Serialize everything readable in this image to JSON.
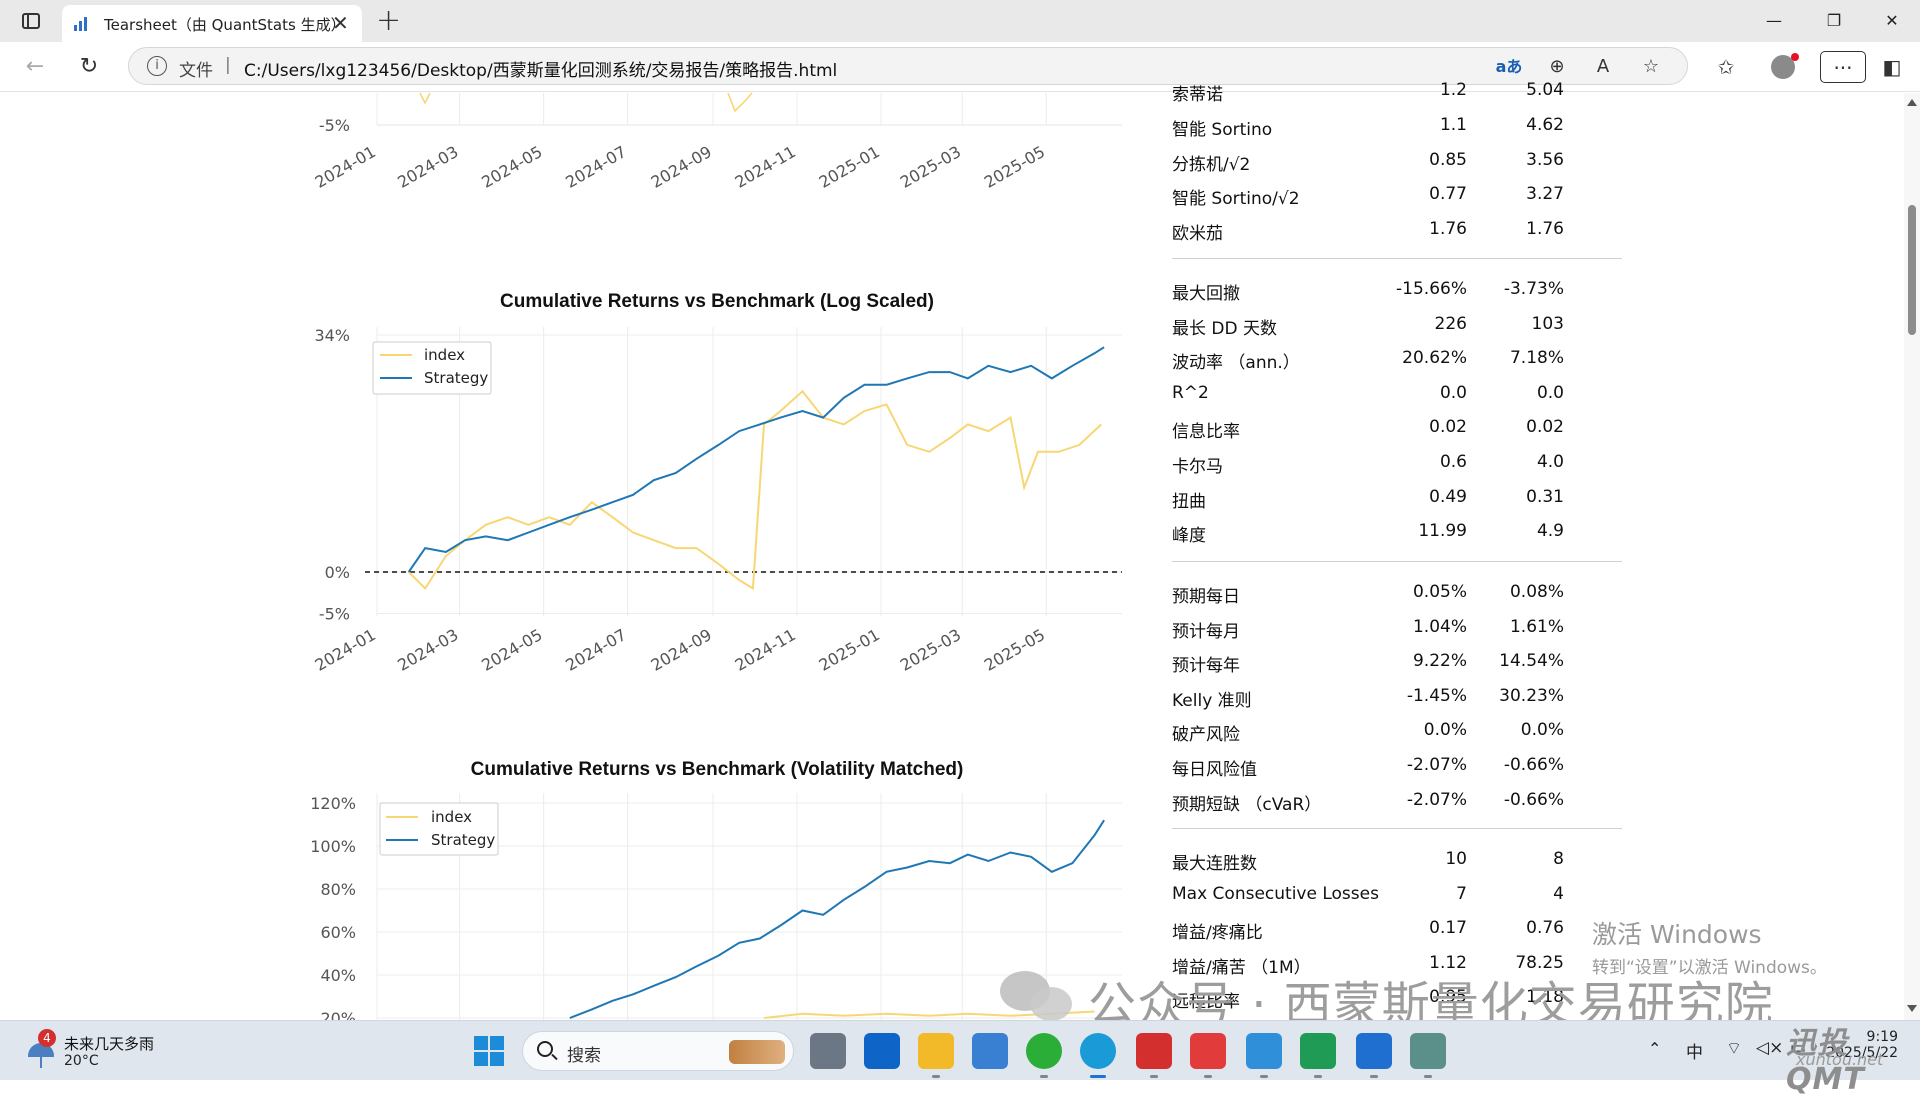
{
  "browser": {
    "tab_title": "Tearsheet（由 QuantStats 生成）",
    "address_scheme": "文件",
    "address_url": "C:/Users/lxg123456/Desktop/西蒙斯量化回测系统/交易报告/策略报告.html"
  },
  "charts": [
    {
      "title": "Cumulative Returns vs Benchmark (Log Scaled)",
      "yticks": [
        "34%",
        "0%",
        "-5%"
      ],
      "xticks": [
        "2024-01",
        "2024-03",
        "2024-05",
        "2024-07",
        "2024-09",
        "2024-11",
        "2025-01",
        "2025-03",
        "2025-05"
      ],
      "legend": [
        "index",
        "Strategy"
      ]
    },
    {
      "title": "Cumulative Returns vs Benchmark (Volatility Matched)",
      "yticks": [
        "120%",
        "100%",
        "80%",
        "60%",
        "40%",
        "20%"
      ],
      "legend": [
        "index",
        "Strategy"
      ]
    }
  ],
  "partial_chart_above": {
    "yticks": [
      "-5%"
    ],
    "xticks": [
      "2024-01",
      "2024-03",
      "2024-05",
      "2024-07",
      "2024-09",
      "2024-11",
      "2025-01",
      "2025-03",
      "2025-05"
    ]
  },
  "chart_data": [
    {
      "type": "line",
      "title": "Cumulative Returns vs Benchmark (Log Scaled)",
      "xlabel": "",
      "ylabel": "",
      "x_range": [
        "2024-01",
        "2025-06"
      ],
      "ylim": [
        -0.05,
        0.34
      ],
      "log_scale": true,
      "grid": true,
      "legend_position": "top-left",
      "series": [
        {
          "name": "index",
          "color": "#f7d774",
          "x": [
            "2024-01-24",
            "2024-02-05",
            "2024-02-20",
            "2024-03-05",
            "2024-03-20",
            "2024-04-05",
            "2024-04-20",
            "2024-05-05",
            "2024-05-20",
            "2024-06-05",
            "2024-06-20",
            "2024-07-05",
            "2024-07-20",
            "2024-08-05",
            "2024-08-20",
            "2024-09-05",
            "2024-09-20",
            "2024-09-30",
            "2024-10-08",
            "2024-10-20",
            "2024-11-05",
            "2024-11-20",
            "2024-12-05",
            "2024-12-20",
            "2025-01-05",
            "2025-01-20",
            "2025-02-05",
            "2025-02-20",
            "2025-03-05",
            "2025-03-20",
            "2025-04-05",
            "2025-04-15",
            "2025-04-25",
            "2025-05-10",
            "2025-05-25",
            "2025-06-10"
          ],
          "y": [
            0.0,
            -0.02,
            0.02,
            0.04,
            0.06,
            0.07,
            0.06,
            0.07,
            0.06,
            0.09,
            0.07,
            0.05,
            0.04,
            0.03,
            0.03,
            0.01,
            -0.01,
            -0.02,
            0.2,
            0.22,
            0.25,
            0.21,
            0.2,
            0.22,
            0.23,
            0.17,
            0.16,
            0.18,
            0.2,
            0.19,
            0.21,
            0.11,
            0.16,
            0.16,
            0.17,
            0.2
          ]
        },
        {
          "name": "Strategy",
          "color": "#1f77b4",
          "x": [
            "2024-01-24",
            "2024-02-05",
            "2024-02-20",
            "2024-03-05",
            "2024-03-20",
            "2024-04-05",
            "2024-04-20",
            "2024-05-05",
            "2024-05-20",
            "2024-06-05",
            "2024-06-20",
            "2024-07-05",
            "2024-07-20",
            "2024-08-05",
            "2024-08-20",
            "2024-09-05",
            "2024-09-20",
            "2024-10-05",
            "2024-10-20",
            "2024-11-05",
            "2024-11-20",
            "2024-12-05",
            "2024-12-20",
            "2025-01-05",
            "2025-01-20",
            "2025-02-05",
            "2025-02-20",
            "2025-03-05",
            "2025-03-20",
            "2025-04-05",
            "2025-04-20",
            "2025-05-05",
            "2025-05-20",
            "2025-06-05",
            "2025-06-12"
          ],
          "y": [
            0.0,
            0.03,
            0.025,
            0.04,
            0.045,
            0.04,
            0.05,
            0.06,
            0.07,
            0.08,
            0.09,
            0.1,
            0.12,
            0.13,
            0.15,
            0.17,
            0.19,
            0.2,
            0.21,
            0.22,
            0.21,
            0.24,
            0.26,
            0.26,
            0.27,
            0.28,
            0.28,
            0.27,
            0.29,
            0.28,
            0.29,
            0.27,
            0.29,
            0.31,
            0.32
          ]
        }
      ]
    },
    {
      "type": "line",
      "title": "Cumulative Returns vs Benchmark (Volatility Matched)",
      "xlabel": "",
      "ylabel": "",
      "x_range": [
        "2024-01",
        "2025-06"
      ],
      "ylim": [
        0.15,
        1.25
      ],
      "grid": true,
      "legend_position": "top-left",
      "series": [
        {
          "name": "index",
          "color": "#f7d774",
          "x": [
            "2024-10-08",
            "2024-11-05",
            "2024-12-05",
            "2025-01-05",
            "2025-02-05",
            "2025-03-05",
            "2025-04-05",
            "2025-05-05",
            "2025-06-05"
          ],
          "y": [
            0.2,
            0.22,
            0.21,
            0.22,
            0.21,
            0.22,
            0.21,
            0.22,
            0.23
          ]
        },
        {
          "name": "Strategy",
          "color": "#1f77b4",
          "x": [
            "2024-05-20",
            "2024-06-05",
            "2024-06-20",
            "2024-07-05",
            "2024-07-20",
            "2024-08-05",
            "2024-08-20",
            "2024-09-05",
            "2024-09-20",
            "2024-10-05",
            "2024-10-20",
            "2024-11-05",
            "2024-11-20",
            "2024-12-05",
            "2024-12-20",
            "2025-01-05",
            "2025-01-20",
            "2025-02-05",
            "2025-02-20",
            "2025-03-05",
            "2025-03-20",
            "2025-04-05",
            "2025-04-20",
            "2025-05-05",
            "2025-05-20",
            "2025-06-05",
            "2025-06-12"
          ],
          "y": [
            0.2,
            0.24,
            0.28,
            0.31,
            0.35,
            0.39,
            0.44,
            0.49,
            0.55,
            0.57,
            0.63,
            0.7,
            0.68,
            0.75,
            0.81,
            0.88,
            0.9,
            0.93,
            0.92,
            0.96,
            0.93,
            0.97,
            0.95,
            0.88,
            0.92,
            1.05,
            1.12
          ]
        }
      ]
    }
  ],
  "metrics": {
    "partial_top_row": {
      "label": "索蒂诺",
      "v1": "1.2",
      "v2": "5.04"
    },
    "groups": [
      [
        {
          "label": "智能 Sortino",
          "v1": "1.1",
          "v2": "4.62"
        },
        {
          "label": "分拣机/√2",
          "v1": "0.85",
          "v2": "3.56"
        },
        {
          "label": "智能 Sortino/√2",
          "v1": "0.77",
          "v2": "3.27"
        },
        {
          "label": "欧米茄",
          "v1": "1.76",
          "v2": "1.76"
        }
      ],
      [
        {
          "label": "最大回撤",
          "v1": "-15.66%",
          "v2": "-3.73%"
        },
        {
          "label": "最长 DD 天数",
          "v1": "226",
          "v2": "103"
        },
        {
          "label": "波动率 （ann.）",
          "v1": "20.62%",
          "v2": "7.18%"
        },
        {
          "label": "R^2",
          "v1": "0.0",
          "v2": "0.0"
        },
        {
          "label": "信息比率",
          "v1": "0.02",
          "v2": "0.02"
        },
        {
          "label": "卡尔马",
          "v1": "0.6",
          "v2": "4.0"
        },
        {
          "label": "扭曲",
          "v1": "0.49",
          "v2": "0.31"
        },
        {
          "label": "峰度",
          "v1": "11.99",
          "v2": "4.9"
        }
      ],
      [
        {
          "label": "预期每日",
          "v1": "0.05%",
          "v2": "0.08%"
        },
        {
          "label": "预计每月",
          "v1": "1.04%",
          "v2": "1.61%"
        },
        {
          "label": "预计每年",
          "v1": "9.22%",
          "v2": "14.54%"
        },
        {
          "label": "Kelly 准则",
          "v1": "-1.45%",
          "v2": "30.23%"
        },
        {
          "label": "破产风险",
          "v1": "0.0%",
          "v2": "0.0%"
        },
        {
          "label": "每日风险值",
          "v1": "-2.07%",
          "v2": "-0.66%"
        },
        {
          "label": "预期短缺 （cVaR）",
          "v1": "-2.07%",
          "v2": "-0.66%"
        }
      ],
      [
        {
          "label": "最大连胜数",
          "v1": "10",
          "v2": "8"
        },
        {
          "label": "Max Consecutive Losses",
          "v1": "7",
          "v2": "4"
        },
        {
          "label": "增益/疼痛比",
          "v1": "0.17",
          "v2": "0.76"
        },
        {
          "label": "增益/痛苦 （1M）",
          "v1": "1.12",
          "v2": "78.25"
        },
        {
          "label": "远程比率",
          "v1": "0.95",
          "v2": "1.18"
        }
      ]
    ]
  },
  "watermarks": {
    "activate_line1": "激活 Windows",
    "activate_line2": "转到“设置”以激活 Windows。",
    "wechat": "公众号 · 西蒙斯量化交易研究院",
    "brand": "迅投QMT",
    "brand_sub": "xuntou.net"
  },
  "taskbar": {
    "weather_badge": "4",
    "weather_text": "未来几天多雨",
    "weather_temp": "20°C",
    "search_placeholder": "搜索",
    "ime": "中",
    "time": "9:19",
    "date": "2025/5/22"
  },
  "colors": {
    "index": "#f7d774",
    "strategy": "#1f77b4",
    "edge_accent": "#1a73d9"
  }
}
